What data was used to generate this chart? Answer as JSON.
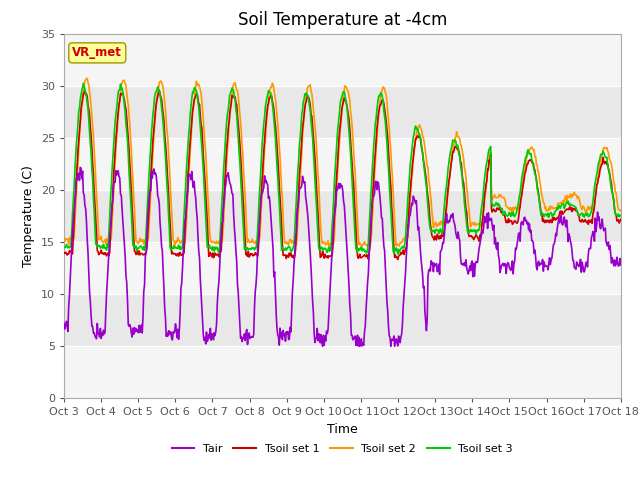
{
  "title": "Soil Temperature at -4cm",
  "xlabel": "Time",
  "ylabel": "Temperature (C)",
  "ylim": [
    0,
    35
  ],
  "xlim": [
    0,
    15
  ],
  "xtick_labels": [
    "Oct 3",
    "Oct 4",
    "Oct 5",
    "Oct 6",
    "Oct 7",
    "Oct 8",
    "Oct 9",
    "Oct 10",
    "Oct 11",
    "Oct 12",
    "Oct 13",
    "Oct 14",
    "Oct 15",
    "Oct 16",
    "Oct 17",
    "Oct 18"
  ],
  "xtick_positions": [
    0,
    1,
    2,
    3,
    4,
    5,
    6,
    7,
    8,
    9,
    10,
    11,
    12,
    13,
    14,
    15
  ],
  "ytick_positions": [
    0,
    5,
    10,
    15,
    20,
    25,
    30,
    35
  ],
  "colors": {
    "Tair": "#9900cc",
    "Tsoil1": "#cc0000",
    "Tsoil2": "#ff9900",
    "Tsoil3": "#00cc00"
  },
  "annotation_text": "VR_met",
  "annotation_color": "#cc0000",
  "annotation_bg": "#ffff99",
  "legend_labels": [
    "Tair",
    "Tsoil set 1",
    "Tsoil set 2",
    "Tsoil set 3"
  ],
  "bg_gray": "#e8e8e8",
  "bg_light": "#f5f5f5",
  "title_fontsize": 12,
  "axis_fontsize": 9,
  "tick_fontsize": 8
}
